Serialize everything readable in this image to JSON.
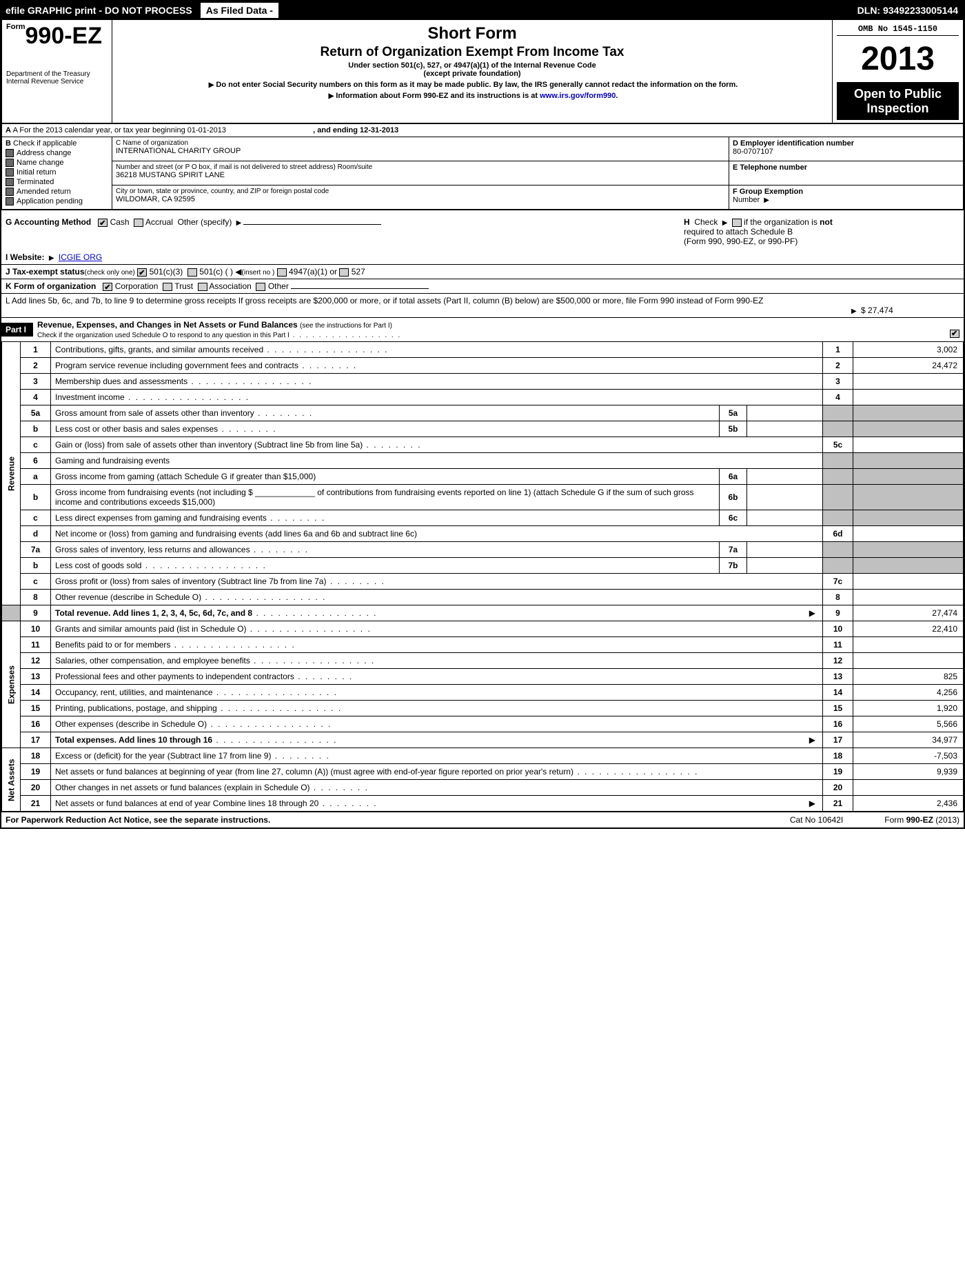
{
  "top": {
    "efile": "efile GRAPHIC print - DO NOT PROCESS",
    "asfiled": "As Filed Data -",
    "dln": "DLN: 93492233005144"
  },
  "header": {
    "form_label": "Form",
    "form_no": "990-EZ",
    "dept": "Department of the Treasury",
    "irs": "Internal Revenue Service",
    "title": "Short Form",
    "title2": "Return of Organization Exempt From Income Tax",
    "sub1": "Under section 501(c), 527, or 4947(a)(1) of the Internal Revenue Code",
    "sub2": "(except private foundation)",
    "note1": "Do not enter Social Security numbers on this form as it may be made public. By law, the IRS generally cannot redact the information on the form.",
    "note2_a": "Information about Form 990-EZ and its instructions is at ",
    "note2_link": "www.irs.gov/form990",
    "omb": "OMB No 1545-1150",
    "year": "2013",
    "public1": "Open to Public",
    "public2": "Inspection"
  },
  "rowA": {
    "label": "A  For the 2013 calendar year, or tax year beginning 01-01-2013",
    "ending": ", and ending 12-31-2013"
  },
  "B": {
    "head": "Check if applicable",
    "opts": [
      "Address change",
      "Name change",
      "Initial return",
      "Terminated",
      "Amended return",
      "Application pending"
    ]
  },
  "C": {
    "name_label": "C Name of organization",
    "name": "INTERNATIONAL CHARITY GROUP",
    "street_label": "Number and street (or P O box, if mail is not delivered to street address) Room/suite",
    "street": "36218 MUSTANG SPIRIT LANE",
    "city_label": "City or town, state or province, country, and ZIP or foreign postal code",
    "city": "WILDOMAR, CA  92595"
  },
  "D": {
    "label": "D Employer identification number",
    "val": "80-0707107"
  },
  "E": {
    "label": "E Telephone number",
    "val": ""
  },
  "F": {
    "label": "F Group Exemption",
    "label2": "Number"
  },
  "G": {
    "label": "G Accounting Method",
    "cash": "Cash",
    "accrual": "Accrual",
    "other": "Other (specify)"
  },
  "H": {
    "label1": "Check",
    "label2": "if the organization is ",
    "not": "not",
    "label3": "required to attach Schedule B",
    "label4": "(Form 990, 990-EZ, or 990-PF)"
  },
  "I": {
    "label": "I Website:",
    "val": "ICGIE ORG"
  },
  "J": {
    "label": "J Tax-exempt status",
    "sub": "(check only one)",
    "a": "501(c)(3)",
    "b": "501(c) (   )",
    "insert": "(insert no )",
    "c": "4947(a)(1) or",
    "d": "527"
  },
  "K": {
    "label": "K Form of organization",
    "opts": [
      "Corporation",
      "Trust",
      "Association",
      "Other"
    ]
  },
  "L": {
    "text": "L Add lines 5b, 6c, and 7b, to line 9 to determine gross receipts  If gross receipts are $200,000 or more, or if total assets (Part II, column (B) below) are $500,000 or more, file Form 990 instead of Form 990-EZ",
    "val": "$ 27,474"
  },
  "part1": {
    "tab": "Part I",
    "title": "Revenue, Expenses, and Changes in Net Assets or Fund Balances",
    "sub": "(see the instructions for Part I)",
    "check_line": "Check if the organization used Schedule O to respond to any question in this Part I"
  },
  "side": {
    "rev": "Revenue",
    "exp": "Expenses",
    "net": "Net Assets"
  },
  "lines": {
    "l1": {
      "n": "1",
      "d": "Contributions, gifts, grants, and similar amounts received",
      "r": "1",
      "v": "3,002"
    },
    "l2": {
      "n": "2",
      "d": "Program service revenue including government fees and contracts",
      "r": "2",
      "v": "24,472"
    },
    "l3": {
      "n": "3",
      "d": "Membership dues and assessments",
      "r": "3",
      "v": ""
    },
    "l4": {
      "n": "4",
      "d": "Investment income",
      "r": "4",
      "v": ""
    },
    "l5a": {
      "n": "5a",
      "d": "Gross amount from sale of assets other than inventory",
      "sn": "5a"
    },
    "l5b": {
      "n": "b",
      "d": "Less cost or other basis and sales expenses",
      "sn": "5b"
    },
    "l5c": {
      "n": "c",
      "d": "Gain or (loss) from sale of assets other than inventory (Subtract line 5b from line 5a)",
      "r": "5c",
      "v": ""
    },
    "l6": {
      "n": "6",
      "d": "Gaming and fundraising events"
    },
    "l6a": {
      "n": "a",
      "d": "Gross income from gaming (attach Schedule G if greater than $15,000)",
      "sn": "6a"
    },
    "l6b": {
      "n": "b",
      "d": "Gross income from fundraising events (not including $ _____________ of contributions from fundraising events reported on line 1) (attach Schedule G if the sum of such gross income and contributions exceeds $15,000)",
      "sn": "6b"
    },
    "l6c": {
      "n": "c",
      "d": "Less direct expenses from gaming and fundraising events",
      "sn": "6c"
    },
    "l6d": {
      "n": "d",
      "d": "Net income or (loss) from gaming and fundraising events (add lines 6a and 6b and subtract line 6c)",
      "r": "6d",
      "v": ""
    },
    "l7a": {
      "n": "7a",
      "d": "Gross sales of inventory, less returns and allowances",
      "sn": "7a"
    },
    "l7b": {
      "n": "b",
      "d": "Less cost of goods sold",
      "sn": "7b"
    },
    "l7c": {
      "n": "c",
      "d": "Gross profit or (loss) from sales of inventory (Subtract line 7b from line 7a)",
      "r": "7c",
      "v": ""
    },
    "l8": {
      "n": "8",
      "d": "Other revenue (describe in Schedule O)",
      "r": "8",
      "v": ""
    },
    "l9": {
      "n": "9",
      "d": "Total revenue. Add lines 1, 2, 3, 4, 5c, 6d, 7c, and 8",
      "r": "9",
      "v": "27,474"
    },
    "l10": {
      "n": "10",
      "d": "Grants and similar amounts paid (list in Schedule O)",
      "r": "10",
      "v": "22,410"
    },
    "l11": {
      "n": "11",
      "d": "Benefits paid to or for members",
      "r": "11",
      "v": ""
    },
    "l12": {
      "n": "12",
      "d": "Salaries, other compensation, and employee benefits",
      "r": "12",
      "v": ""
    },
    "l13": {
      "n": "13",
      "d": "Professional fees and other payments to independent contractors",
      "r": "13",
      "v": "825"
    },
    "l14": {
      "n": "14",
      "d": "Occupancy, rent, utilities, and maintenance",
      "r": "14",
      "v": "4,256"
    },
    "l15": {
      "n": "15",
      "d": "Printing, publications, postage, and shipping",
      "r": "15",
      "v": "1,920"
    },
    "l16": {
      "n": "16",
      "d": "Other expenses (describe in Schedule O)",
      "r": "16",
      "v": "5,566"
    },
    "l17": {
      "n": "17",
      "d": "Total expenses. Add lines 10 through 16",
      "r": "17",
      "v": "34,977"
    },
    "l18": {
      "n": "18",
      "d": "Excess or (deficit) for the year (Subtract line 17 from line 9)",
      "r": "18",
      "v": "-7,503"
    },
    "l19": {
      "n": "19",
      "d": "Net assets or fund balances at beginning of year (from line 27, column (A)) (must agree with end-of-year figure reported on prior year's return)",
      "r": "19",
      "v": "9,939"
    },
    "l20": {
      "n": "20",
      "d": "Other changes in net assets or fund balances (explain in Schedule O)",
      "r": "20",
      "v": ""
    },
    "l21": {
      "n": "21",
      "d": "Net assets or fund balances at end of year  Combine lines 18 through 20",
      "r": "21",
      "v": "2,436"
    }
  },
  "footer": {
    "left": "For Paperwork Reduction Act Notice, see the separate instructions.",
    "center": "Cat No 10642I",
    "right_pre": "Form ",
    "right_b": "990-EZ",
    "right_post": " (2013)"
  }
}
